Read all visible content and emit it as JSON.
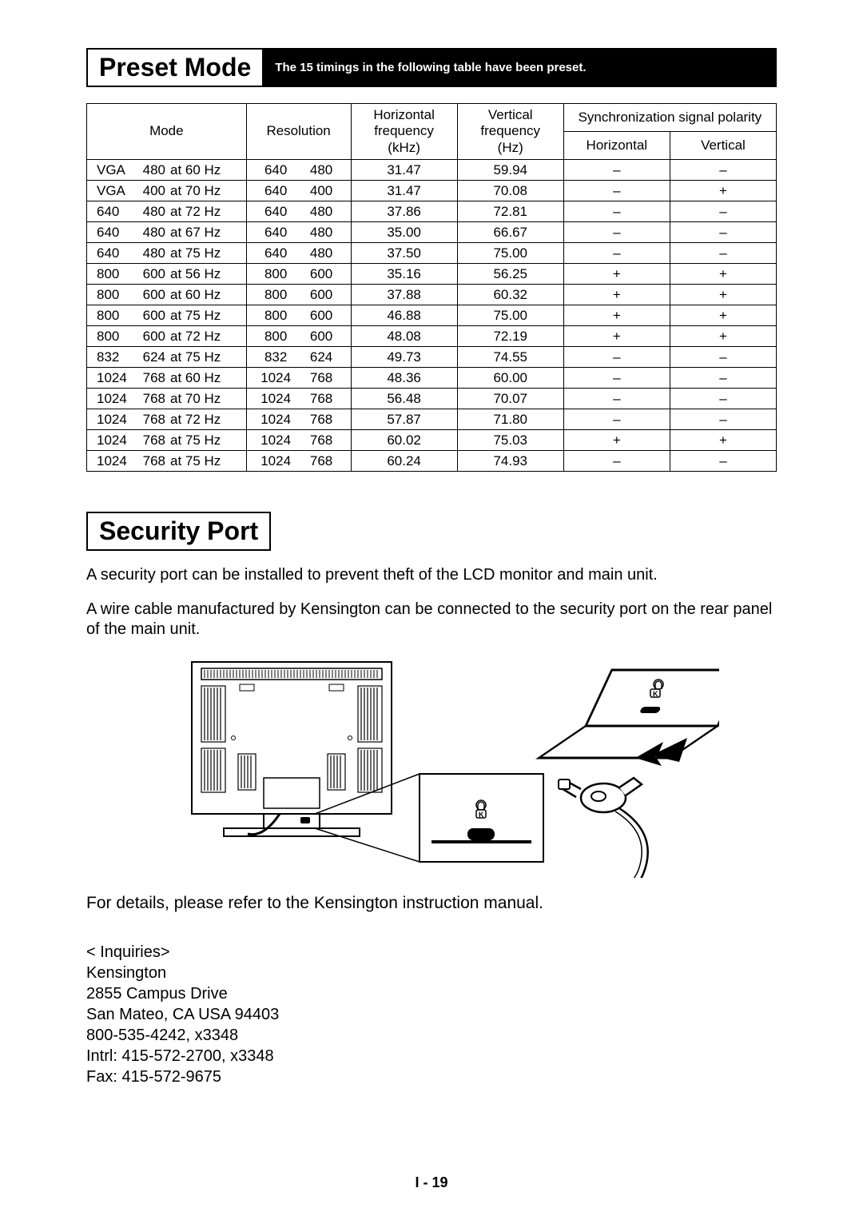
{
  "preset": {
    "title": "Preset Mode",
    "bar_text": "The 15 timings in the following table have been preset.",
    "headers": {
      "mode": "Mode",
      "resolution": "Resolution",
      "hfreq_l1": "Horizontal",
      "hfreq_l2": "frequency",
      "hfreq_l3": "(kHz)",
      "vfreq_l1": "Vertical",
      "vfreq_l2": "frequency",
      "vfreq_l3": "(Hz)",
      "sync": "Synchronization signal polarity",
      "sync_h": "Horizontal",
      "sync_v": "Vertical"
    },
    "rows": [
      {
        "mw": "VGA",
        "mh": "480",
        "mhz": "at 60 Hz",
        "rw": "640",
        "rh": "480",
        "hf": "31.47",
        "vf": "59.94",
        "sh": "–",
        "sv": "–"
      },
      {
        "mw": "VGA",
        "mh": "400",
        "mhz": "at 70 Hz",
        "rw": "640",
        "rh": "400",
        "hf": "31.47",
        "vf": "70.08",
        "sh": "–",
        "sv": "+"
      },
      {
        "mw": "640",
        "mh": "480",
        "mhz": "at 72 Hz",
        "rw": "640",
        "rh": "480",
        "hf": "37.86",
        "vf": "72.81",
        "sh": "–",
        "sv": "–"
      },
      {
        "mw": "640",
        "mh": "480",
        "mhz": "at 67 Hz",
        "rw": "640",
        "rh": "480",
        "hf": "35.00",
        "vf": "66.67",
        "sh": "–",
        "sv": "–"
      },
      {
        "mw": "640",
        "mh": "480",
        "mhz": "at 75 Hz",
        "rw": "640",
        "rh": "480",
        "hf": "37.50",
        "vf": "75.00",
        "sh": "–",
        "sv": "–"
      },
      {
        "mw": "800",
        "mh": "600",
        "mhz": "at 56 Hz",
        "rw": "800",
        "rh": "600",
        "hf": "35.16",
        "vf": "56.25",
        "sh": "+",
        "sv": "+"
      },
      {
        "mw": "800",
        "mh": "600",
        "mhz": "at 60 Hz",
        "rw": "800",
        "rh": "600",
        "hf": "37.88",
        "vf": "60.32",
        "sh": "+",
        "sv": "+"
      },
      {
        "mw": "800",
        "mh": "600",
        "mhz": "at 75 Hz",
        "rw": "800",
        "rh": "600",
        "hf": "46.88",
        "vf": "75.00",
        "sh": "+",
        "sv": "+"
      },
      {
        "mw": "800",
        "mh": "600",
        "mhz": "at 72 Hz",
        "rw": "800",
        "rh": "600",
        "hf": "48.08",
        "vf": "72.19",
        "sh": "+",
        "sv": "+"
      },
      {
        "mw": "832",
        "mh": "624",
        "mhz": "at 75 Hz",
        "rw": "832",
        "rh": "624",
        "hf": "49.73",
        "vf": "74.55",
        "sh": "–",
        "sv": "–"
      },
      {
        "mw": "1024",
        "mh": "768",
        "mhz": "at 60 Hz",
        "rw": "1024",
        "rh": "768",
        "hf": "48.36",
        "vf": "60.00",
        "sh": "–",
        "sv": "–"
      },
      {
        "mw": "1024",
        "mh": "768",
        "mhz": "at 70 Hz",
        "rw": "1024",
        "rh": "768",
        "hf": "56.48",
        "vf": "70.07",
        "sh": "–",
        "sv": "–"
      },
      {
        "mw": "1024",
        "mh": "768",
        "mhz": "at 72 Hz",
        "rw": "1024",
        "rh": "768",
        "hf": "57.87",
        "vf": "71.80",
        "sh": "–",
        "sv": "–"
      },
      {
        "mw": "1024",
        "mh": "768",
        "mhz": "at 75 Hz",
        "rw": "1024",
        "rh": "768",
        "hf": "60.02",
        "vf": "75.03",
        "sh": "+",
        "sv": "+"
      },
      {
        "mw": "1024",
        "mh": "768",
        "mhz": "at 75 Hz",
        "rw": "1024",
        "rh": "768",
        "hf": "60.24",
        "vf": "74.93",
        "sh": "–",
        "sv": "–"
      }
    ]
  },
  "security": {
    "title": "Security Port",
    "p1": "A security port can be installed to prevent theft of the LCD monitor and main unit.",
    "p2": "A wire cable manufactured by Kensington can be connected to the security port on the rear panel of the main unit.",
    "refer": "For details, please refer to the Kensington instruction manual.",
    "inq_title": "< Inquiries>",
    "inq_name": "Kensington",
    "inq_addr1": "2855 Campus Drive",
    "inq_addr2": "San Mateo, CA USA 94403",
    "inq_ph1": "800-535-4242, x3348",
    "inq_ph2": "Intrl: 415-572-2700, x3348",
    "inq_fax": "Fax: 415-572-9675"
  },
  "page_number": "I - 19",
  "style": {
    "colors": {
      "text": "#000000",
      "bg": "#ffffff",
      "bar_bg": "#000000",
      "bar_fg": "#ffffff",
      "border": "#000000"
    },
    "fonts": {
      "title_size": 32,
      "body_size": 20,
      "table_size": 17
    }
  }
}
